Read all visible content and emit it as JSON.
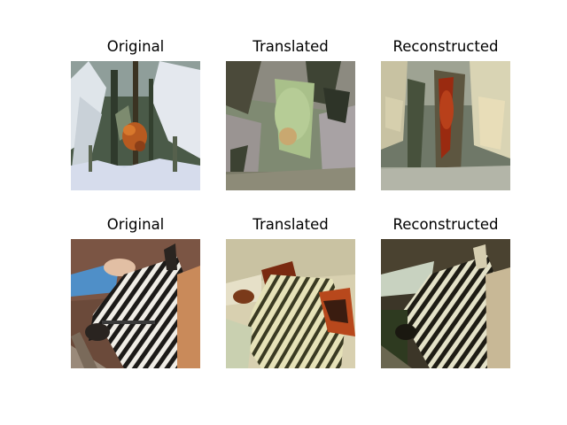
{
  "figure": {
    "rows": [
      {
        "scene": "snowy-forest-fox",
        "panels": [
          {
            "title": "Original"
          },
          {
            "title": "Translated"
          },
          {
            "title": "Reconstructed"
          }
        ]
      },
      {
        "scene": "zebra-foal",
        "panels": [
          {
            "title": "Original"
          },
          {
            "title": "Translated"
          },
          {
            "title": "Reconstructed"
          }
        ]
      }
    ]
  }
}
